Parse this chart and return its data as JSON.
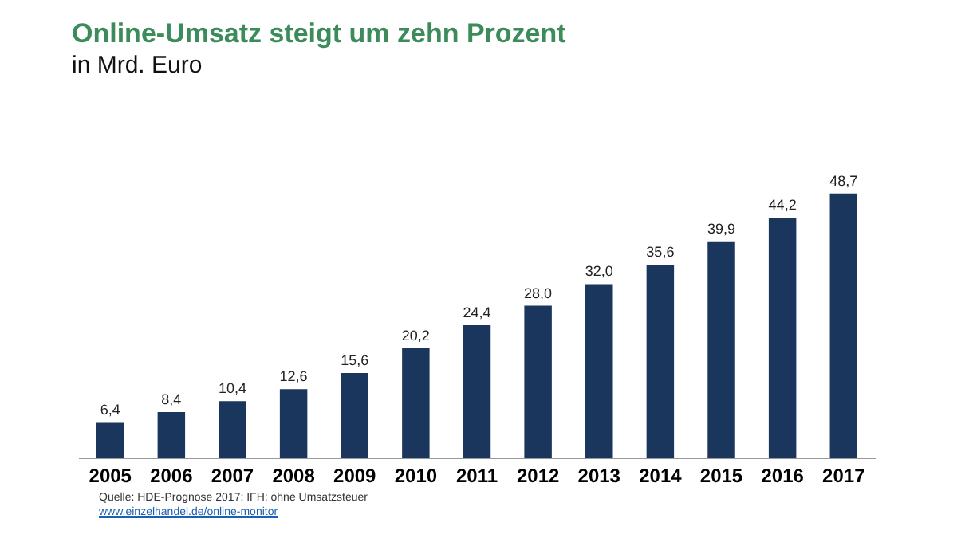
{
  "chart_data": {
    "type": "bar",
    "title": "Online-Umsatz steigt um zehn Prozent",
    "subtitle": "in Mrd. Euro",
    "categories": [
      "2005",
      "2006",
      "2007",
      "2008",
      "2009",
      "2010",
      "2011",
      "2012",
      "2013",
      "2014",
      "2015",
      "2016",
      "2017"
    ],
    "values": [
      6.4,
      8.4,
      10.4,
      12.6,
      15.6,
      20.2,
      24.4,
      28.0,
      32.0,
      35.6,
      39.9,
      44.2,
      48.7
    ],
    "value_labels": [
      "6,4",
      "8,4",
      "10,4",
      "12,6",
      "15,6",
      "20,2",
      "24,4",
      "28,0",
      "32,0",
      "35,6",
      "39,9",
      "44,2",
      "48,7"
    ],
    "color": "#1b365d",
    "annotations": [
      "Quelle: HDE-Prognose 2017; IFH; ohne Umsatzsteuer",
      "www.einzelhandel.de/online-monitor"
    ]
  }
}
